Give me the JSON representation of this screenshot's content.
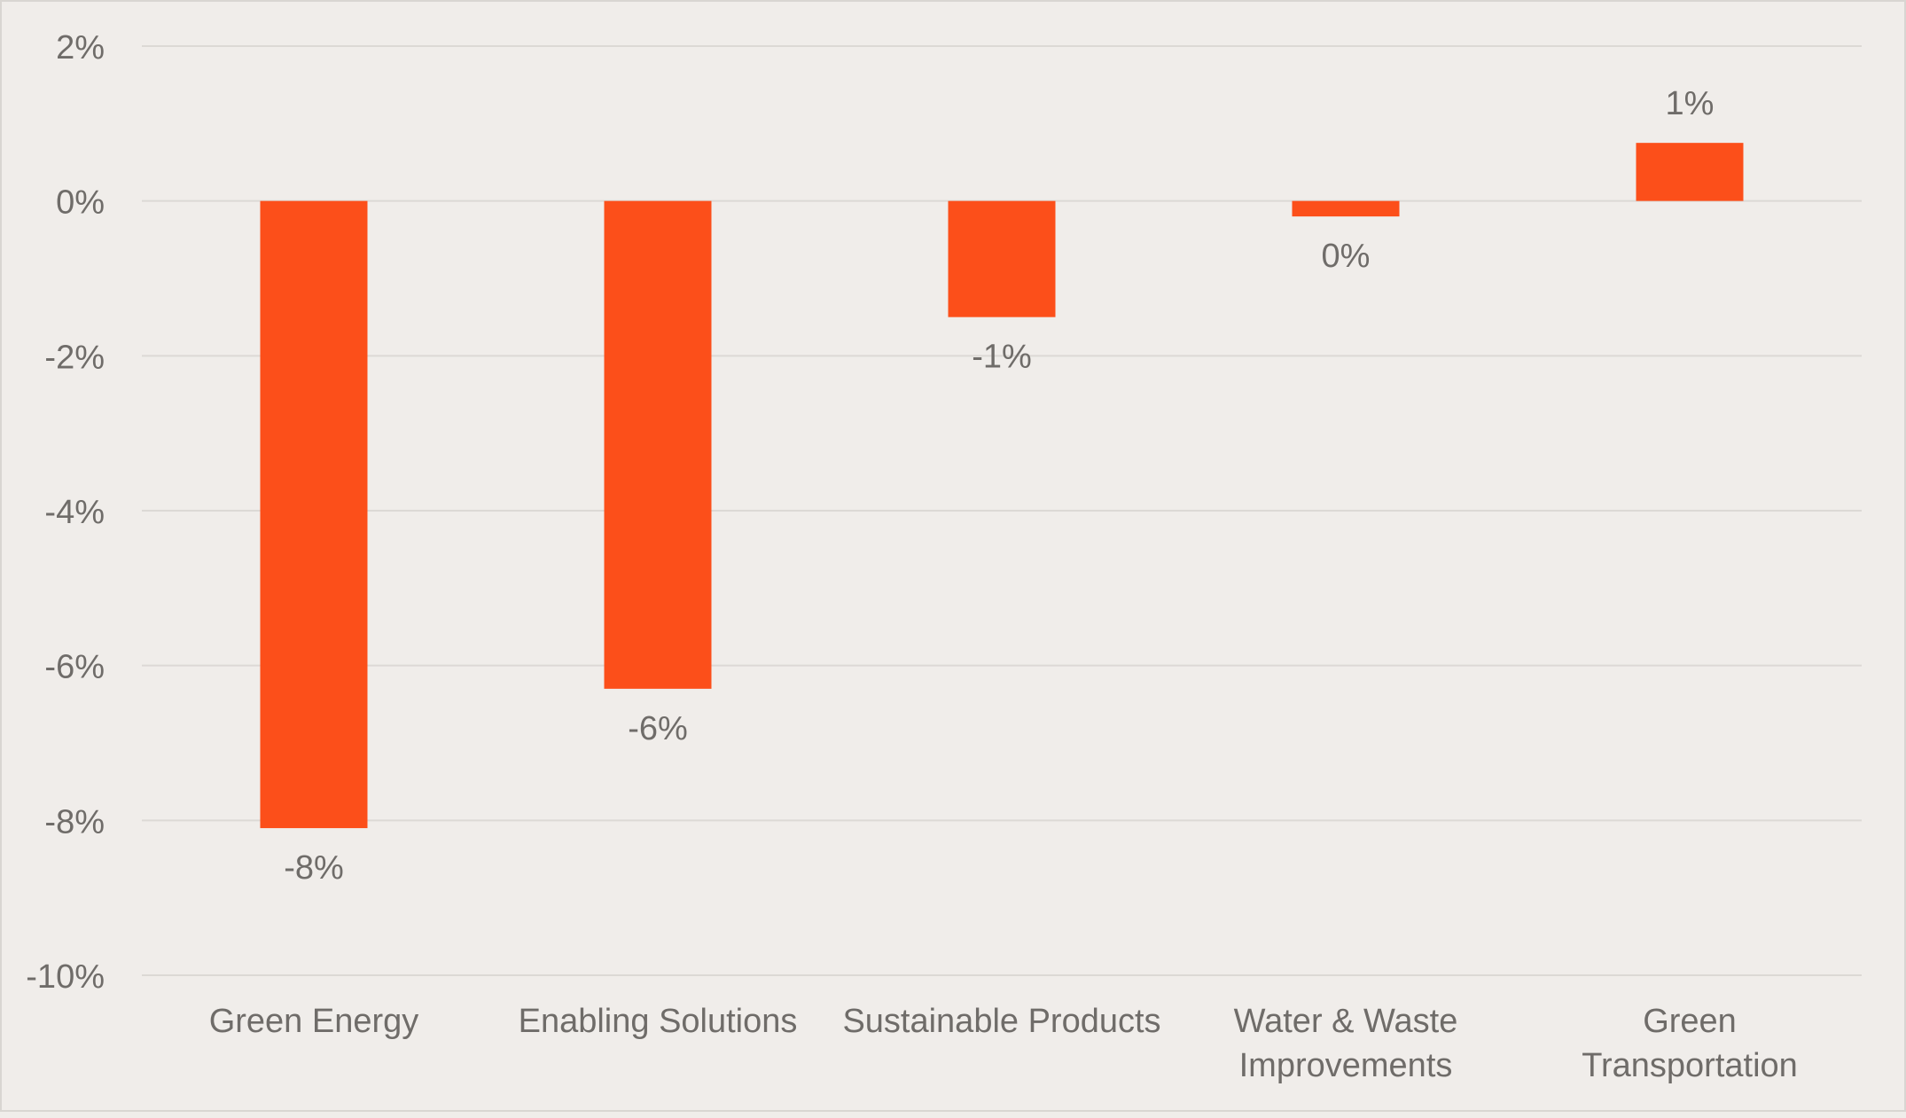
{
  "chart_data": {
    "type": "bar",
    "categories": [
      [
        "Green Energy"
      ],
      [
        "Enabling Solutions"
      ],
      [
        "Sustainable Products"
      ],
      [
        "Water & Waste",
        "Improvements"
      ],
      [
        "Green",
        "Transportation"
      ]
    ],
    "values": [
      -8.1,
      -6.3,
      -1.5,
      -0.2,
      0.75
    ],
    "data_labels": [
      "-8%",
      "-6%",
      "-1%",
      "0%",
      "1%"
    ],
    "y_ticks": [
      2,
      0,
      -2,
      -4,
      -6,
      -8,
      -10
    ],
    "y_tick_labels": [
      "2%",
      "0%",
      "-2%",
      "-4%",
      "-6%",
      "-8%",
      "-10%"
    ],
    "ylim": [
      -10,
      2
    ],
    "grid": true,
    "legend": "none",
    "colors": {
      "bar": "#fc4f1a",
      "text": "#6f6c69",
      "grid": "#dcd9d5",
      "background": "#f0edea"
    }
  }
}
